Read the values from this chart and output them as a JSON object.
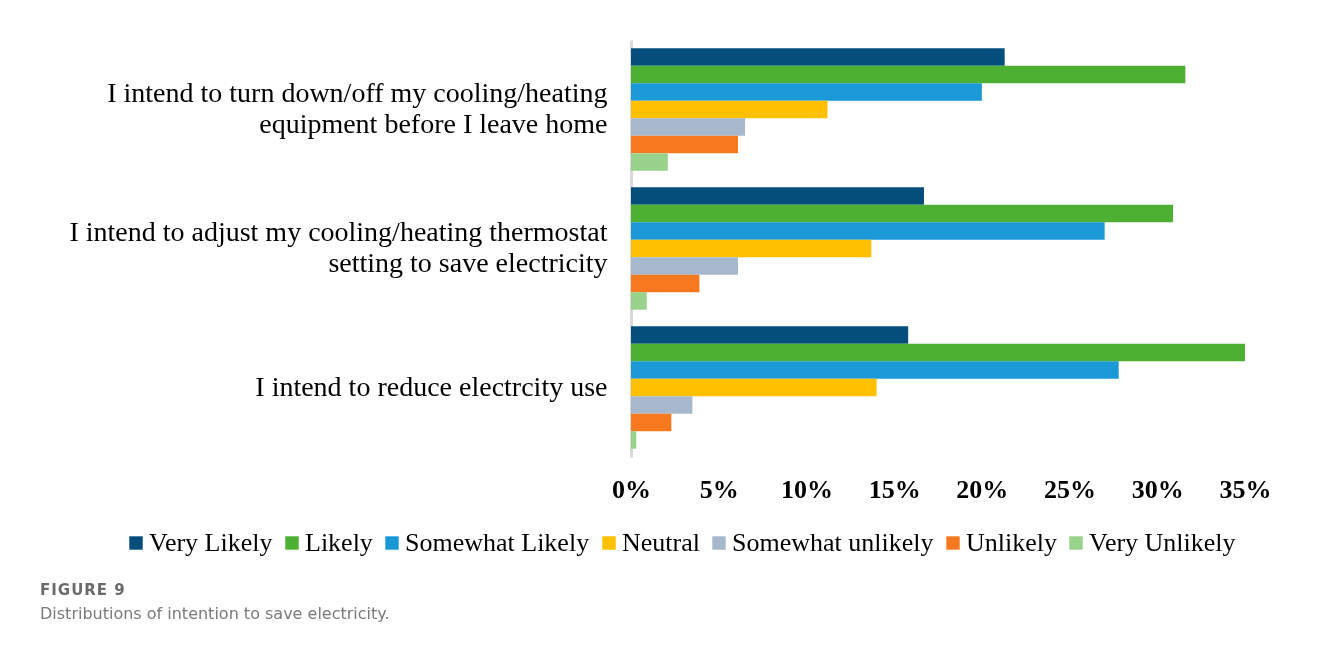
{
  "chart_data": {
    "type": "bar",
    "orientation": "horizontal",
    "categories": [
      "I intend to turn down/off my cooling/heating equipment before I leave home",
      "I intend to adjust my cooling/heating thermostat setting to save electricity",
      "I intend to reduce electrcity use"
    ],
    "series": [
      {
        "name": "Very Likely",
        "color": "#044e7b",
        "values": [
          21.3,
          16.7,
          15.8
        ]
      },
      {
        "name": "Likely",
        "color": "#4db033",
        "values": [
          31.6,
          30.9,
          35.0
        ]
      },
      {
        "name": "Somewhat Likely",
        "color": "#1b98d6",
        "values": [
          20.0,
          27.0,
          27.8
        ]
      },
      {
        "name": "Neutral",
        "color": "#ffc000",
        "values": [
          11.2,
          13.7,
          14.0
        ]
      },
      {
        "name": "Somewhat unlikely",
        "color": "#a7b8cc",
        "values": [
          6.5,
          6.1,
          3.5
        ]
      },
      {
        "name": "Unlikely",
        "color": "#f7791f",
        "values": [
          6.1,
          3.9,
          2.3
        ]
      },
      {
        "name": "Very Unlikely",
        "color": "#98d28b",
        "values": [
          2.1,
          0.9,
          0.3
        ]
      }
    ],
    "xlim": [
      0,
      35
    ],
    "xticks": [
      {
        "value": 0,
        "label": "0%"
      },
      {
        "value": 5,
        "label": "5%"
      },
      {
        "value": 10,
        "label": "10%"
      },
      {
        "value": 15,
        "label": "15%"
      },
      {
        "value": 20,
        "label": "20%"
      },
      {
        "value": 25,
        "label": "25%"
      },
      {
        "value": 30,
        "label": "30%"
      },
      {
        "value": 35,
        "label": "35%"
      }
    ],
    "legend": "bottom",
    "annotations": [
      "FIGURE 9",
      "Distributions of intention to save electricity."
    ]
  }
}
